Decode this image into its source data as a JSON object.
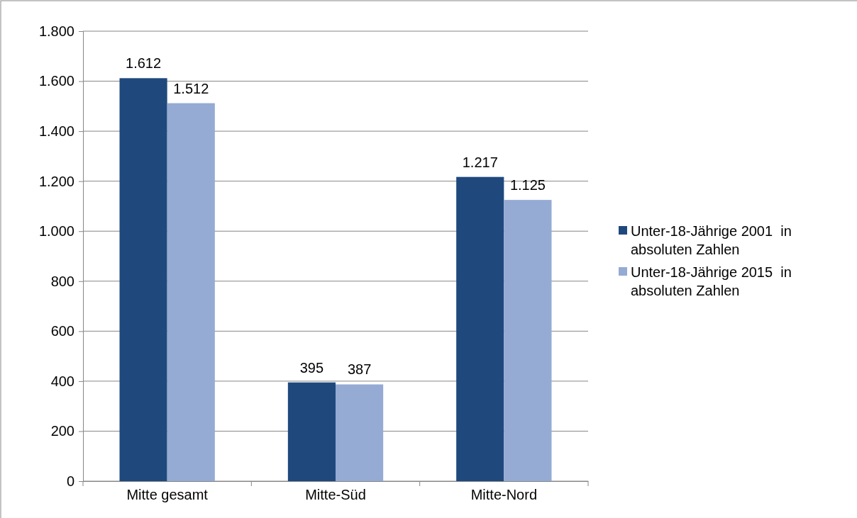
{
  "chart_data": {
    "type": "bar",
    "categories": [
      "Mitte gesamt",
      "Mitte-Süd",
      "Mitte-Nord"
    ],
    "series": [
      {
        "name": "Unter-18-Jährige 2001  in absoluten Zahlen",
        "color": "#1f497d",
        "values": [
          1612,
          395,
          1217
        ],
        "value_labels": [
          "1.612",
          "395",
          "1.217"
        ]
      },
      {
        "name": "Unter-18-Jährige 2015  in absoluten Zahlen",
        "color": "#95abd3",
        "values": [
          1512,
          387,
          1125
        ],
        "value_labels": [
          "1.512",
          "387",
          "1.125"
        ]
      }
    ],
    "ylim": [
      0,
      1800
    ],
    "yticks": [
      0,
      {
        "value": 200,
        "label": "200"
      },
      {
        "value": 400,
        "label": "400"
      },
      {
        "value": 600,
        "label": "600"
      },
      {
        "value": 800,
        "label": "800"
      },
      {
        "value": 1000,
        "label": "1.000"
      },
      {
        "value": 1200,
        "label": "1.200"
      },
      {
        "value": 1400,
        "label": "1.400"
      },
      {
        "value": 1600,
        "label": "1.600"
      },
      {
        "value": 1800,
        "label": "1.800"
      }
    ],
    "grid": "y",
    "legend": "right"
  }
}
